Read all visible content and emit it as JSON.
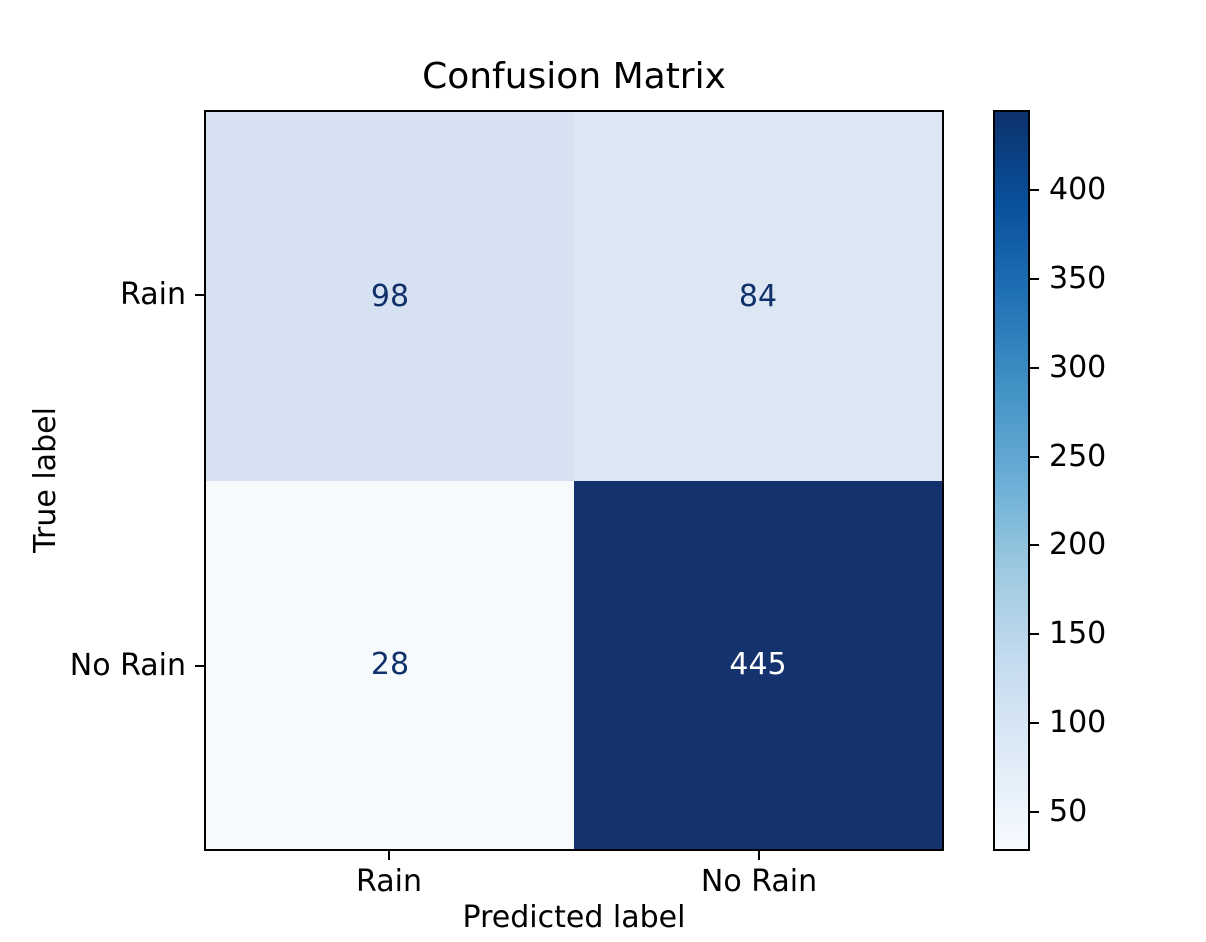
{
  "chart_data": {
    "type": "heatmap",
    "title": "Confusion Matrix",
    "xlabel": "Predicted label",
    "ylabel": "True label",
    "x_categories": [
      "Rain",
      "No Rain"
    ],
    "y_categories": [
      "Rain",
      "No Rain"
    ],
    "matrix": [
      [
        98,
        84
      ],
      [
        28,
        445
      ]
    ],
    "colormap": "Blues",
    "vmin": 28,
    "vmax": 445,
    "colorbar_ticks": [
      50,
      100,
      150,
      200,
      250,
      300,
      350,
      400
    ],
    "colorbar_position": "right",
    "grid": false,
    "cell_colors": [
      [
        "#d6e2f1",
        "#dde7f3"
      ],
      [
        "#f7fafd",
        "#14326e"
      ]
    ],
    "cell_text_colors": [
      [
        "#11316b",
        "#11316b"
      ],
      [
        "#11316b",
        "#ffffff"
      ]
    ],
    "colormap_stops": [
      {
        "frac": 0.0,
        "color": "#f7fbff"
      },
      {
        "frac": 0.125,
        "color": "#deebf7"
      },
      {
        "frac": 0.25,
        "color": "#c6dbef"
      },
      {
        "frac": 0.375,
        "color": "#9ecae1"
      },
      {
        "frac": 0.5,
        "color": "#6baed6"
      },
      {
        "frac": 0.625,
        "color": "#4292c6"
      },
      {
        "frac": 0.75,
        "color": "#2171b5"
      },
      {
        "frac": 0.875,
        "color": "#08519c"
      },
      {
        "frac": 1.0,
        "color": "#0d316c"
      }
    ],
    "spine_color": "#000000",
    "background_color": "#ffffff"
  }
}
